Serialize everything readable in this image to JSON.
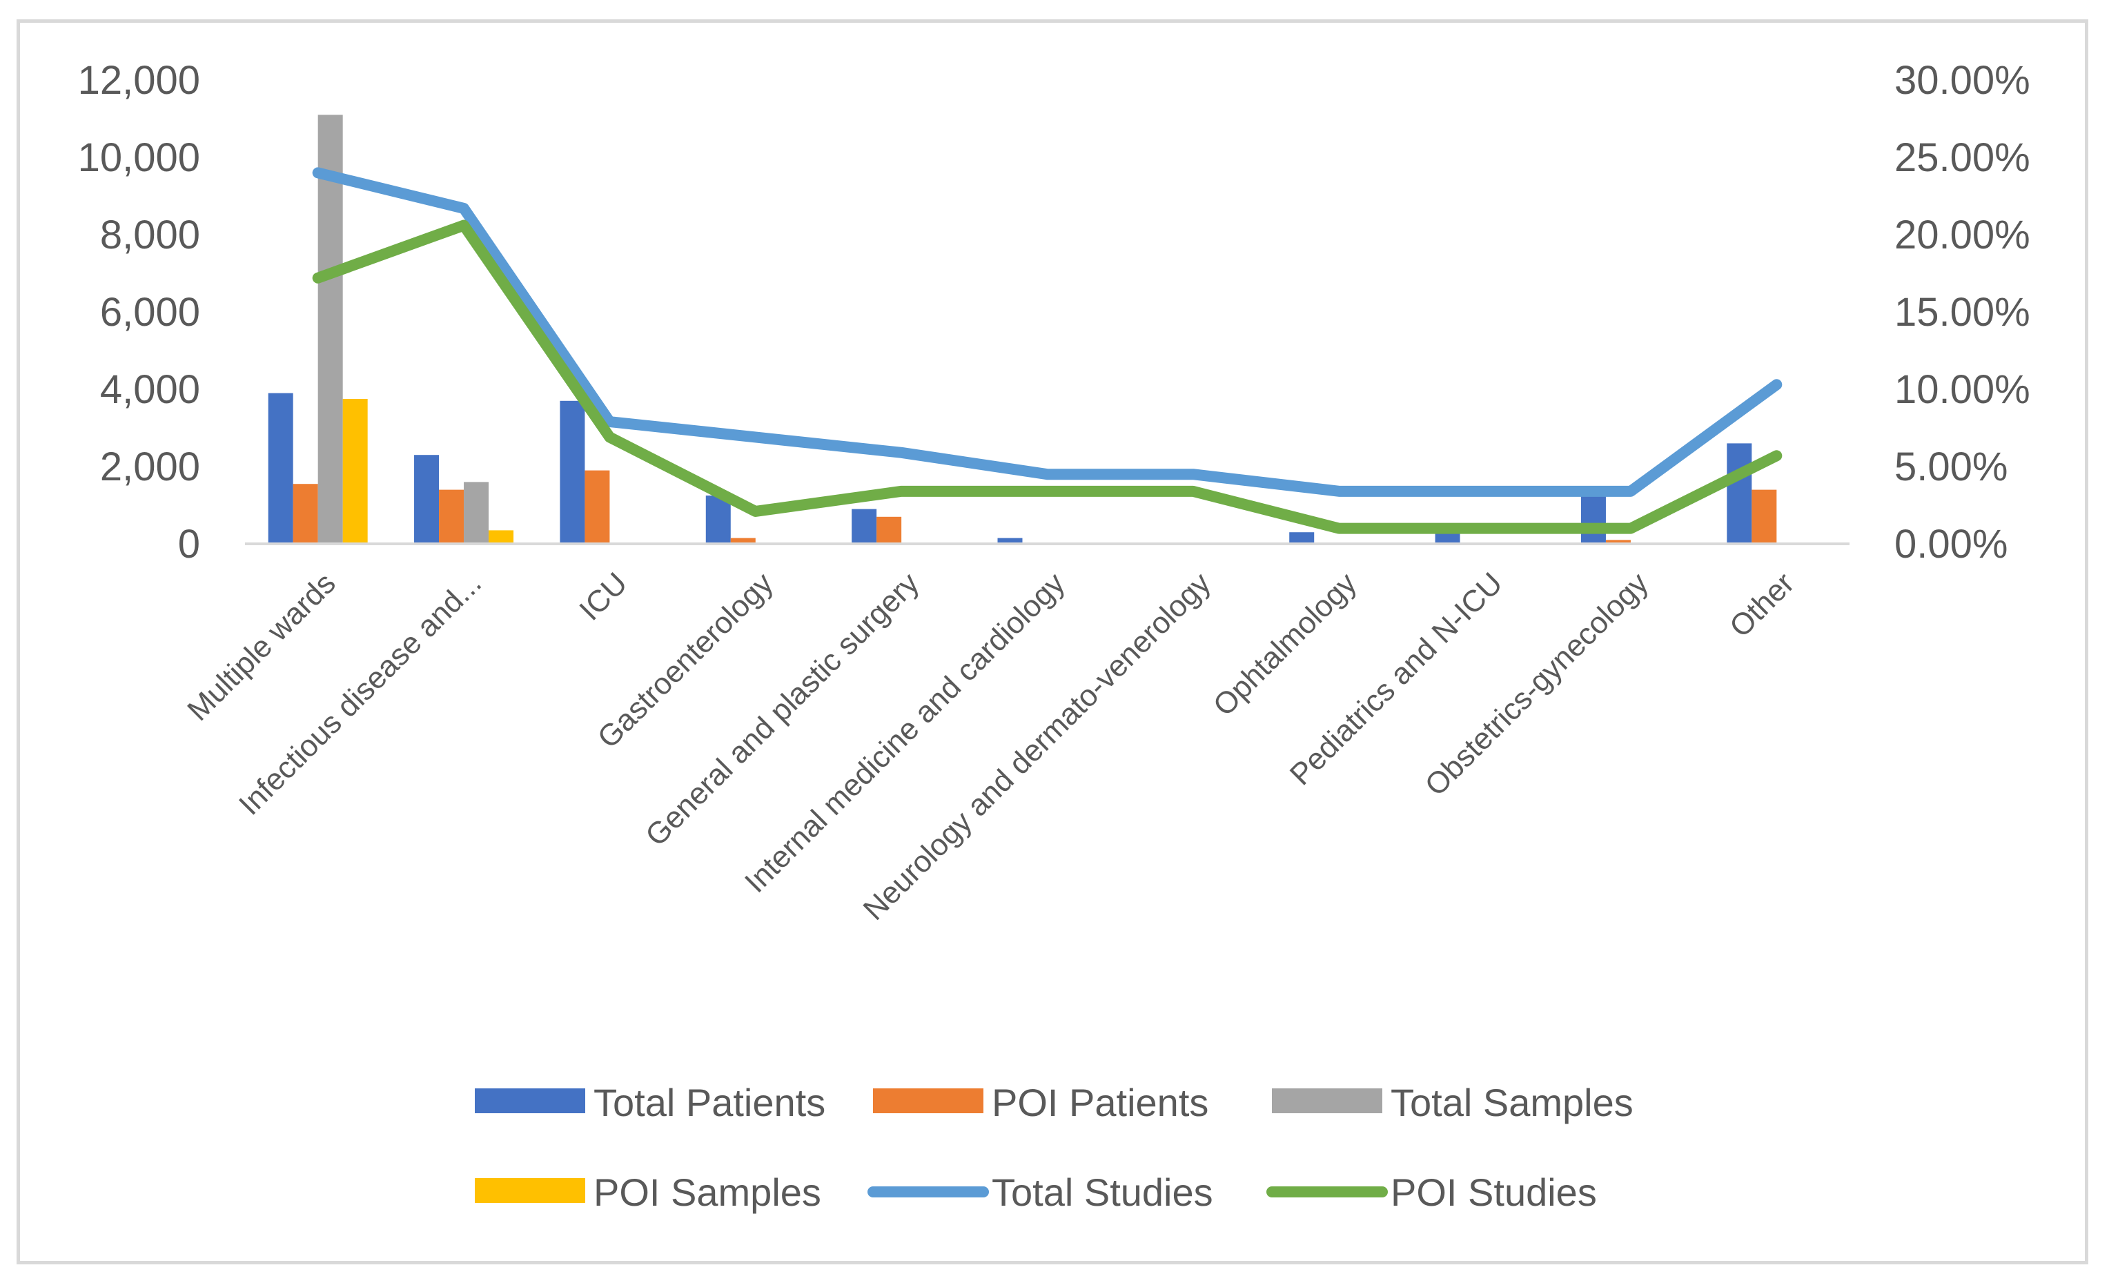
{
  "chart_data": {
    "type": "bar+line",
    "categories": [
      "Multiple wards",
      "Infectious disease and...",
      "ICU",
      "Gastroenterology",
      "General and plastic surgery",
      "Internal medicine and cardiology",
      "Neurology and dermato-venerology",
      "Ophtalmology",
      "Pediatrics and N-ICU",
      "Obstetrics-gynecology",
      "Other"
    ],
    "bar_series": [
      {
        "name": "Total Patients",
        "color": "#4472c4",
        "values": [
          3900,
          2300,
          3700,
          1250,
          900,
          150,
          0,
          300,
          300,
          1250,
          2600
        ]
      },
      {
        "name": "POI Patients",
        "color": "#ed7d31",
        "values": [
          1550,
          1400,
          1900,
          150,
          700,
          0,
          0,
          0,
          0,
          100,
          1400
        ]
      },
      {
        "name": "Total Samples",
        "color": "#a5a5a5",
        "values": [
          11100,
          1600,
          0,
          0,
          0,
          0,
          0,
          0,
          0,
          0,
          0
        ]
      },
      {
        "name": "POI Samples",
        "color": "#ffc000",
        "values": [
          3750,
          350,
          0,
          0,
          0,
          0,
          0,
          0,
          0,
          0,
          0
        ]
      }
    ],
    "line_series": [
      {
        "name": "Total Studies",
        "color": "#5b9bd5",
        "values": [
          24.0,
          21.7,
          7.9,
          6.9,
          5.9,
          4.5,
          4.5,
          3.4,
          3.4,
          3.4,
          10.3
        ]
      },
      {
        "name": "POI Studies",
        "color": "#70ad47",
        "values": [
          17.2,
          20.6,
          6.9,
          2.1,
          3.4,
          3.4,
          3.4,
          1.0,
          1.0,
          1.0,
          5.7
        ]
      }
    ],
    "y_left": {
      "ylim": [
        0,
        12000
      ],
      "ticks": [
        "0",
        "2,000",
        "4,000",
        "6,000",
        "8,000",
        "10,000",
        "12,000"
      ]
    },
    "y_right": {
      "ylim": [
        0,
        30
      ],
      "ticks": [
        "0.00%",
        "5.00%",
        "10.00%",
        "15.00%",
        "20.00%",
        "25.00%",
        "30.00%"
      ]
    },
    "legend": [
      {
        "name": "Total Patients",
        "kind": "bar",
        "color": "#4472c4"
      },
      {
        "name": "POI Patients",
        "kind": "bar",
        "color": "#ed7d31"
      },
      {
        "name": "Total Samples",
        "kind": "bar",
        "color": "#a5a5a5"
      },
      {
        "name": "POI Samples",
        "kind": "bar",
        "color": "#ffc000"
      },
      {
        "name": "Total Studies",
        "kind": "line",
        "color": "#5b9bd5"
      },
      {
        "name": "POI Studies",
        "kind": "line",
        "color": "#70ad47"
      }
    ],
    "legend_position": "bottom",
    "gridlines": false
  }
}
